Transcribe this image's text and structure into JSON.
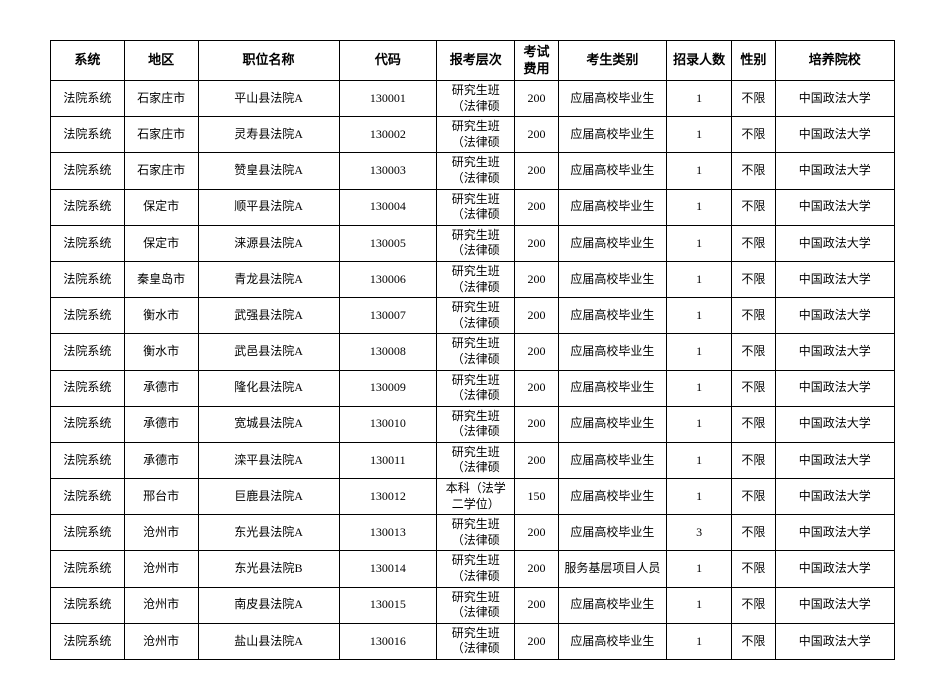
{
  "table": {
    "columns": [
      {
        "key": "system",
        "label": "系统",
        "cls": "col-system"
      },
      {
        "key": "region",
        "label": "地区",
        "cls": "col-region"
      },
      {
        "key": "position",
        "label": "职位名称",
        "cls": "col-position"
      },
      {
        "key": "code",
        "label": "代码",
        "cls": "col-code"
      },
      {
        "key": "level",
        "label": "报考层次",
        "cls": "col-level"
      },
      {
        "key": "fee",
        "label": "考试费用",
        "cls": "col-fee"
      },
      {
        "key": "cat",
        "label": "考生类别",
        "cls": "col-cat"
      },
      {
        "key": "count",
        "label": "招录人数",
        "cls": "col-count"
      },
      {
        "key": "gender",
        "label": "性别",
        "cls": "col-gender"
      },
      {
        "key": "school",
        "label": "培养院校",
        "cls": "col-school"
      }
    ],
    "rows": [
      {
        "system": "法院系统",
        "region": "石家庄市",
        "position": "平山县法院A",
        "code": "130001",
        "level": "研究生班（法律硕",
        "fee": "200",
        "cat": "应届高校毕业生",
        "count": "1",
        "gender": "不限",
        "school": "中国政法大学"
      },
      {
        "system": "法院系统",
        "region": "石家庄市",
        "position": "灵寿县法院A",
        "code": "130002",
        "level": "研究生班（法律硕",
        "fee": "200",
        "cat": "应届高校毕业生",
        "count": "1",
        "gender": "不限",
        "school": "中国政法大学"
      },
      {
        "system": "法院系统",
        "region": "石家庄市",
        "position": "赞皇县法院A",
        "code": "130003",
        "level": "研究生班（法律硕",
        "fee": "200",
        "cat": "应届高校毕业生",
        "count": "1",
        "gender": "不限",
        "school": "中国政法大学"
      },
      {
        "system": "法院系统",
        "region": "保定市",
        "position": "顺平县法院A",
        "code": "130004",
        "level": "研究生班（法律硕",
        "fee": "200",
        "cat": "应届高校毕业生",
        "count": "1",
        "gender": "不限",
        "school": "中国政法大学"
      },
      {
        "system": "法院系统",
        "region": "保定市",
        "position": "涞源县法院A",
        "code": "130005",
        "level": "研究生班（法律硕",
        "fee": "200",
        "cat": "应届高校毕业生",
        "count": "1",
        "gender": "不限",
        "school": "中国政法大学"
      },
      {
        "system": "法院系统",
        "region": "秦皇岛市",
        "position": "青龙县法院A",
        "code": "130006",
        "level": "研究生班（法律硕",
        "fee": "200",
        "cat": "应届高校毕业生",
        "count": "1",
        "gender": "不限",
        "school": "中国政法大学"
      },
      {
        "system": "法院系统",
        "region": "衡水市",
        "position": "武强县法院A",
        "code": "130007",
        "level": "研究生班（法律硕",
        "fee": "200",
        "cat": "应届高校毕业生",
        "count": "1",
        "gender": "不限",
        "school": "中国政法大学"
      },
      {
        "system": "法院系统",
        "region": "衡水市",
        "position": "武邑县法院A",
        "code": "130008",
        "level": "研究生班（法律硕",
        "fee": "200",
        "cat": "应届高校毕业生",
        "count": "1",
        "gender": "不限",
        "school": "中国政法大学"
      },
      {
        "system": "法院系统",
        "region": "承德市",
        "position": "隆化县法院A",
        "code": "130009",
        "level": "研究生班（法律硕",
        "fee": "200",
        "cat": "应届高校毕业生",
        "count": "1",
        "gender": "不限",
        "school": "中国政法大学"
      },
      {
        "system": "法院系统",
        "region": "承德市",
        "position": "宽城县法院A",
        "code": "130010",
        "level": "研究生班（法律硕",
        "fee": "200",
        "cat": "应届高校毕业生",
        "count": "1",
        "gender": "不限",
        "school": "中国政法大学"
      },
      {
        "system": "法院系统",
        "region": "承德市",
        "position": "滦平县法院A",
        "code": "130011",
        "level": "研究生班（法律硕",
        "fee": "200",
        "cat": "应届高校毕业生",
        "count": "1",
        "gender": "不限",
        "school": "中国政法大学"
      },
      {
        "system": "法院系统",
        "region": "邢台市",
        "position": "巨鹿县法院A",
        "code": "130012",
        "level": "本科（法学二学位）",
        "fee": "150",
        "cat": "应届高校毕业生",
        "count": "1",
        "gender": "不限",
        "school": "中国政法大学"
      },
      {
        "system": "法院系统",
        "region": "沧州市",
        "position": "东光县法院A",
        "code": "130013",
        "level": "研究生班（法律硕",
        "fee": "200",
        "cat": "应届高校毕业生",
        "count": "3",
        "gender": "不限",
        "school": "中国政法大学"
      },
      {
        "system": "法院系统",
        "region": "沧州市",
        "position": "东光县法院B",
        "code": "130014",
        "level": "研究生班（法律硕",
        "fee": "200",
        "cat": "服务基层项目人员",
        "count": "1",
        "gender": "不限",
        "school": "中国政法大学"
      },
      {
        "system": "法院系统",
        "region": "沧州市",
        "position": "南皮县法院A",
        "code": "130015",
        "level": "研究生班（法律硕",
        "fee": "200",
        "cat": "应届高校毕业生",
        "count": "1",
        "gender": "不限",
        "school": "中国政法大学"
      },
      {
        "system": "法院系统",
        "region": "沧州市",
        "position": "盐山县法院A",
        "code": "130016",
        "level": "研究生班（法律硕",
        "fee": "200",
        "cat": "应届高校毕业生",
        "count": "1",
        "gender": "不限",
        "school": "中国政法大学"
      }
    ]
  }
}
